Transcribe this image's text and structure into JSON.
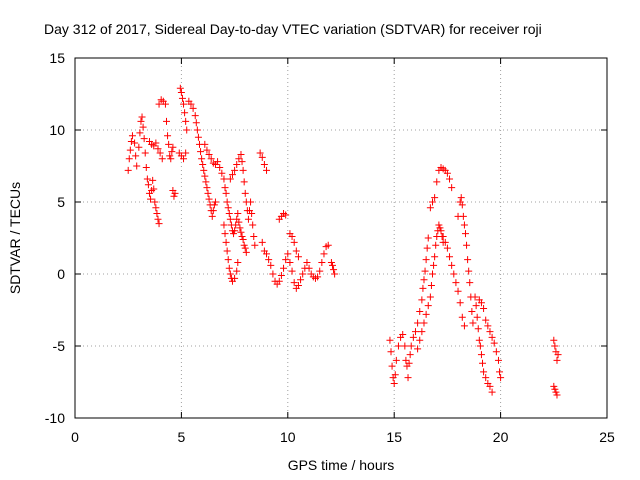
{
  "chart_data": {
    "type": "scatter",
    "title": "Day 312 of 2017, Sidereal Day-to-day VTEC variation (SDTVAR) for receiver roji",
    "xlabel": "GPS time / hours",
    "ylabel": "SDTVAR / TECUs",
    "xlim": [
      0,
      25
    ],
    "ylim": [
      -10,
      15
    ],
    "xticks": [
      "0",
      "5",
      "10",
      "15",
      "20",
      "25"
    ],
    "yticks": [
      "-10",
      "-5",
      "0",
      "5",
      "10",
      "15"
    ],
    "grid": true,
    "marker": "plus",
    "color": "#ff0000",
    "series": [
      {
        "name": "SDTVAR",
        "points": [
          [
            2.5,
            7.2
          ],
          [
            2.55,
            8.0
          ],
          [
            2.6,
            8.6
          ],
          [
            2.65,
            9.2
          ],
          [
            2.7,
            9.6
          ],
          [
            2.8,
            9.1
          ],
          [
            2.85,
            8.2
          ],
          [
            2.9,
            7.5
          ],
          [
            3.0,
            8.8
          ],
          [
            3.05,
            9.8
          ],
          [
            3.1,
            10.6
          ],
          [
            3.15,
            10.9
          ],
          [
            3.2,
            10.2
          ],
          [
            3.25,
            9.4
          ],
          [
            3.3,
            8.4
          ],
          [
            3.35,
            7.4
          ],
          [
            3.4,
            6.6
          ],
          [
            3.45,
            6.2
          ],
          [
            3.5,
            5.6
          ],
          [
            3.55,
            5.2
          ],
          [
            3.6,
            5.8
          ],
          [
            3.65,
            6.5
          ],
          [
            3.7,
            5.9
          ],
          [
            3.75,
            5.0
          ],
          [
            3.8,
            4.6
          ],
          [
            3.85,
            4.2
          ],
          [
            3.9,
            3.8
          ],
          [
            3.95,
            3.5
          ],
          [
            3.5,
            9.2
          ],
          [
            3.6,
            9.0
          ],
          [
            3.7,
            8.9
          ],
          [
            3.8,
            9.1
          ],
          [
            3.9,
            8.7
          ],
          [
            4.0,
            8.4
          ],
          [
            4.1,
            8.0
          ],
          [
            3.95,
            11.8
          ],
          [
            4.05,
            12.1
          ],
          [
            4.15,
            12.0
          ],
          [
            4.25,
            11.8
          ],
          [
            4.3,
            10.6
          ],
          [
            4.35,
            9.6
          ],
          [
            4.4,
            9.0
          ],
          [
            4.45,
            8.2
          ],
          [
            4.5,
            8.0
          ],
          [
            4.55,
            8.5
          ],
          [
            4.6,
            8.8
          ],
          [
            4.6,
            5.8
          ],
          [
            4.65,
            5.4
          ],
          [
            4.7,
            5.6
          ],
          [
            4.9,
            8.4
          ],
          [
            5.0,
            8.2
          ],
          [
            5.1,
            8.0
          ],
          [
            5.2,
            8.4
          ],
          [
            4.95,
            12.9
          ],
          [
            5.0,
            12.6
          ],
          [
            5.05,
            12.2
          ],
          [
            5.1,
            11.8
          ],
          [
            5.15,
            11.2
          ],
          [
            5.2,
            10.6
          ],
          [
            5.25,
            10.0
          ],
          [
            5.35,
            12.0
          ],
          [
            5.45,
            11.8
          ],
          [
            5.55,
            11.5
          ],
          [
            5.65,
            11.0
          ],
          [
            5.7,
            10.5
          ],
          [
            5.75,
            10.0
          ],
          [
            5.8,
            9.5
          ],
          [
            5.85,
            9.0
          ],
          [
            5.9,
            8.5
          ],
          [
            5.95,
            8.0
          ],
          [
            6.0,
            7.6
          ],
          [
            6.05,
            7.2
          ],
          [
            6.1,
            6.8
          ],
          [
            6.15,
            6.4
          ],
          [
            6.2,
            6.0
          ],
          [
            6.25,
            5.6
          ],
          [
            6.3,
            5.2
          ],
          [
            6.35,
            4.8
          ],
          [
            6.4,
            4.4
          ],
          [
            6.45,
            4.0
          ],
          [
            6.5,
            4.4
          ],
          [
            6.55,
            4.8
          ],
          [
            6.6,
            5.0
          ],
          [
            6.1,
            9.0
          ],
          [
            6.2,
            8.6
          ],
          [
            6.3,
            8.3
          ],
          [
            6.4,
            8.0
          ],
          [
            6.5,
            7.7
          ],
          [
            6.6,
            7.6
          ],
          [
            6.7,
            7.8
          ],
          [
            6.8,
            7.4
          ],
          [
            6.9,
            7.0
          ],
          [
            7.0,
            6.6
          ],
          [
            7.05,
            6.0
          ],
          [
            7.1,
            5.6
          ],
          [
            7.15,
            5.0
          ],
          [
            7.2,
            4.6
          ],
          [
            7.25,
            4.2
          ],
          [
            7.3,
            3.8
          ],
          [
            7.35,
            3.4
          ],
          [
            7.4,
            3.0
          ],
          [
            7.45,
            2.8
          ],
          [
            7.5,
            3.0
          ],
          [
            7.55,
            3.4
          ],
          [
            7.6,
            3.8
          ],
          [
            7.65,
            4.2
          ],
          [
            7.7,
            3.6
          ],
          [
            7.75,
            3.2
          ],
          [
            7.8,
            2.9
          ],
          [
            7.85,
            2.6
          ],
          [
            7.9,
            2.4
          ],
          [
            7.95,
            2.0
          ],
          [
            8.0,
            1.8
          ],
          [
            8.05,
            1.5
          ],
          [
            7.3,
            6.6
          ],
          [
            7.4,
            6.9
          ],
          [
            7.5,
            7.2
          ],
          [
            7.6,
            7.6
          ],
          [
            7.7,
            8.0
          ],
          [
            7.8,
            8.3
          ],
          [
            7.85,
            7.8
          ],
          [
            7.9,
            7.2
          ],
          [
            7.95,
            6.4
          ],
          [
            8.0,
            5.6
          ],
          [
            8.05,
            5.0
          ],
          [
            8.1,
            4.4
          ],
          [
            8.15,
            3.8
          ],
          [
            8.2,
            4.4
          ],
          [
            8.25,
            5.0
          ],
          [
            8.3,
            4.2
          ],
          [
            8.35,
            3.4
          ],
          [
            8.4,
            2.6
          ],
          [
            8.45,
            2.0
          ],
          [
            7.0,
            3.4
          ],
          [
            7.05,
            2.8
          ],
          [
            7.1,
            2.2
          ],
          [
            7.15,
            1.6
          ],
          [
            7.2,
            1.0
          ],
          [
            7.25,
            0.4
          ],
          [
            7.3,
            0.0
          ],
          [
            7.35,
            -0.3
          ],
          [
            7.4,
            -0.5
          ],
          [
            7.5,
            -0.3
          ],
          [
            7.6,
            0.2
          ],
          [
            7.65,
            0.8
          ],
          [
            8.7,
            8.4
          ],
          [
            8.8,
            8.1
          ],
          [
            8.9,
            7.6
          ],
          [
            9.0,
            7.2
          ],
          [
            8.8,
            2.2
          ],
          [
            8.9,
            1.6
          ],
          [
            9.0,
            1.4
          ],
          [
            9.1,
            1.0
          ],
          [
            9.2,
            0.6
          ],
          [
            9.3,
            0.0
          ],
          [
            9.4,
            -0.5
          ],
          [
            9.5,
            -0.7
          ],
          [
            9.6,
            -0.5
          ],
          [
            9.7,
            -0.1
          ],
          [
            9.8,
            0.4
          ],
          [
            9.9,
            1.0
          ],
          [
            10.0,
            1.4
          ],
          [
            10.1,
            0.8
          ],
          [
            10.2,
            0.2
          ],
          [
            10.3,
            -0.6
          ],
          [
            10.4,
            -1.0
          ],
          [
            10.5,
            -0.8
          ],
          [
            10.6,
            -0.4
          ],
          [
            10.7,
            0.0
          ],
          [
            10.8,
            0.4
          ],
          [
            10.9,
            0.8
          ],
          [
            11.0,
            0.4
          ],
          [
            11.1,
            0.0
          ],
          [
            11.2,
            -0.2
          ],
          [
            11.3,
            -0.3
          ],
          [
            11.4,
            -0.2
          ],
          [
            11.5,
            0.2
          ],
          [
            11.6,
            0.8
          ],
          [
            11.7,
            1.4
          ],
          [
            11.8,
            1.9
          ],
          [
            11.9,
            2.0
          ],
          [
            9.6,
            3.8
          ],
          [
            9.7,
            4.0
          ],
          [
            9.8,
            4.2
          ],
          [
            9.9,
            4.1
          ],
          [
            10.1,
            2.8
          ],
          [
            10.2,
            2.6
          ],
          [
            10.3,
            2.2
          ],
          [
            10.4,
            1.6
          ],
          [
            10.5,
            1.2
          ],
          [
            12.05,
            0.8
          ],
          [
            12.1,
            0.6
          ],
          [
            12.15,
            0.3
          ],
          [
            12.2,
            0.0
          ],
          [
            14.8,
            -4.6
          ],
          [
            14.85,
            -5.4
          ],
          [
            14.9,
            -6.4
          ],
          [
            14.95,
            -7.2
          ],
          [
            15.0,
            -7.6
          ],
          [
            15.05,
            -7.0
          ],
          [
            15.1,
            -6.0
          ],
          [
            15.2,
            -5.0
          ],
          [
            15.3,
            -4.4
          ],
          [
            15.4,
            -4.2
          ],
          [
            15.5,
            -5.0
          ],
          [
            15.55,
            -6.0
          ],
          [
            15.6,
            -6.4
          ],
          [
            15.65,
            -7.2
          ],
          [
            15.7,
            -6.2
          ],
          [
            15.75,
            -5.6
          ],
          [
            15.8,
            -5.0
          ],
          [
            15.9,
            -4.4
          ],
          [
            16.0,
            -4.0
          ],
          [
            16.1,
            -3.4
          ],
          [
            16.2,
            -2.6
          ],
          [
            16.3,
            -1.8
          ],
          [
            16.35,
            -1.0
          ],
          [
            16.4,
            -0.4
          ],
          [
            16.45,
            0.2
          ],
          [
            16.5,
            1.0
          ],
          [
            16.55,
            1.8
          ],
          [
            16.6,
            2.5
          ],
          [
            16.1,
            -5.2
          ],
          [
            16.2,
            -4.6
          ],
          [
            16.3,
            -4.0
          ],
          [
            16.4,
            -3.4
          ],
          [
            16.5,
            -2.8
          ],
          [
            16.6,
            -2.2
          ],
          [
            16.7,
            -1.6
          ],
          [
            16.75,
            -0.8
          ],
          [
            16.8,
            0.0
          ],
          [
            16.85,
            0.6
          ],
          [
            16.9,
            1.2
          ],
          [
            16.95,
            2.0
          ],
          [
            17.0,
            2.6
          ],
          [
            17.05,
            3.0
          ],
          [
            17.1,
            3.4
          ],
          [
            17.15,
            3.2
          ],
          [
            17.2,
            3.0
          ],
          [
            17.25,
            2.6
          ],
          [
            17.3,
            2.2
          ],
          [
            16.7,
            4.6
          ],
          [
            16.8,
            5.0
          ],
          [
            16.9,
            5.3
          ],
          [
            17.0,
            6.4
          ],
          [
            17.1,
            7.2
          ],
          [
            17.2,
            7.4
          ],
          [
            17.3,
            7.3
          ],
          [
            17.4,
            7.2
          ],
          [
            17.5,
            7.0
          ],
          [
            17.6,
            6.6
          ],
          [
            17.7,
            6.0
          ],
          [
            17.3,
            2.6
          ],
          [
            17.4,
            2.2
          ],
          [
            17.5,
            1.8
          ],
          [
            17.6,
            1.2
          ],
          [
            17.7,
            0.6
          ],
          [
            17.8,
            0.0
          ],
          [
            17.9,
            -0.6
          ],
          [
            18.0,
            -1.2
          ],
          [
            18.1,
            -2.0
          ],
          [
            18.2,
            -3.0
          ],
          [
            18.3,
            -3.6
          ],
          [
            18.0,
            4.0
          ],
          [
            18.1,
            5.0
          ],
          [
            18.15,
            5.3
          ],
          [
            18.2,
            4.8
          ],
          [
            18.25,
            4.0
          ],
          [
            18.3,
            3.4
          ],
          [
            18.35,
            2.8
          ],
          [
            18.4,
            2.0
          ],
          [
            18.45,
            1.0
          ],
          [
            18.5,
            0.2
          ],
          [
            18.55,
            -0.6
          ],
          [
            18.6,
            -1.6
          ],
          [
            18.65,
            -2.6
          ],
          [
            18.7,
            -3.4
          ],
          [
            18.8,
            -1.6
          ],
          [
            18.85,
            -2.2
          ],
          [
            18.9,
            -3.0
          ],
          [
            18.95,
            -3.8
          ],
          [
            19.0,
            -4.6
          ],
          [
            19.05,
            -5.0
          ],
          [
            19.1,
            -5.6
          ],
          [
            19.15,
            -6.2
          ],
          [
            19.2,
            -6.8
          ],
          [
            19.3,
            -7.2
          ],
          [
            19.4,
            -7.6
          ],
          [
            19.5,
            -7.8
          ],
          [
            19.6,
            -8.2
          ],
          [
            19.3,
            -3.2
          ],
          [
            19.4,
            -3.6
          ],
          [
            19.5,
            -4.0
          ],
          [
            19.6,
            -4.4
          ],
          [
            19.7,
            -4.8
          ],
          [
            19.8,
            -5.4
          ],
          [
            19.9,
            -6.0
          ],
          [
            19.95,
            -6.8
          ],
          [
            20.0,
            -7.2
          ],
          [
            19.0,
            -1.8
          ],
          [
            19.1,
            -2.0
          ],
          [
            19.2,
            -2.4
          ],
          [
            22.5,
            -4.6
          ],
          [
            22.55,
            -5.0
          ],
          [
            22.6,
            -5.4
          ],
          [
            22.65,
            -6.0
          ],
          [
            22.7,
            -5.6
          ],
          [
            22.5,
            -7.8
          ],
          [
            22.55,
            -8.0
          ],
          [
            22.6,
            -8.2
          ],
          [
            22.65,
            -8.4
          ]
        ]
      }
    ]
  }
}
